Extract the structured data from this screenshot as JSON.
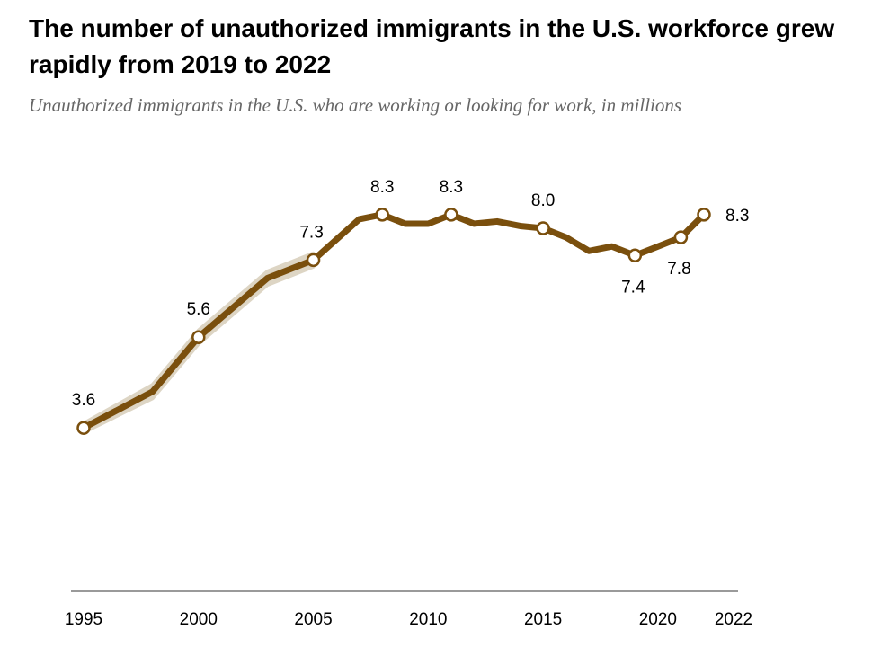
{
  "title": "The number of unauthorized immigrants in the U.S. workforce grew rapidly from 2019 to 2022",
  "subtitle": "Unauthorized immigrants in the U.S. who are working or looking for work, in millions",
  "colors": {
    "line": "#7a4f0d",
    "band": "#ddd5c4",
    "marker_fill": "#ffffff",
    "axis": "#9a9a9a"
  },
  "chart_data": {
    "type": "line",
    "title": "The number of unauthorized immigrants in the U.S. workforce grew rapidly from 2019 to 2022",
    "subtitle": "Unauthorized immigrants in the U.S. who are working or looking for work, in millions",
    "xlabel": "",
    "ylabel": "",
    "x_ticks": [
      1995,
      2000,
      2005,
      2010,
      2015,
      2020,
      2022
    ],
    "x_range": [
      1995,
      2022
    ],
    "ylim": [
      0,
      9
    ],
    "grid": false,
    "series": [
      {
        "x": [
          1995,
          1998,
          2000,
          2003,
          2005,
          2007,
          2008,
          2009,
          2010,
          2011,
          2012,
          2013,
          2014,
          2015,
          2016,
          2017,
          2018,
          2019,
          2020,
          2021,
          2022
        ],
        "values": [
          3.6,
          4.4,
          5.6,
          6.9,
          7.3,
          8.2,
          8.3,
          8.1,
          8.1,
          8.3,
          8.1,
          8.15,
          8.05,
          8.0,
          7.8,
          7.5,
          7.6,
          7.4,
          7.6,
          7.8,
          8.3
        ]
      }
    ],
    "labeled_points": [
      {
        "x": 1995,
        "y": 3.6,
        "label": "3.6",
        "position": "above"
      },
      {
        "x": 2000,
        "y": 5.6,
        "label": "5.6",
        "position": "above"
      },
      {
        "x": 2005,
        "y": 7.3,
        "label": "7.3",
        "position": "above-left"
      },
      {
        "x": 2008,
        "y": 8.3,
        "label": "8.3",
        "position": "above"
      },
      {
        "x": 2011,
        "y": 8.3,
        "label": "8.3",
        "position": "above"
      },
      {
        "x": 2015,
        "y": 8.0,
        "label": "8.0",
        "position": "above"
      },
      {
        "x": 2019,
        "y": 7.4,
        "label": "7.4",
        "position": "below"
      },
      {
        "x": 2021,
        "y": 7.8,
        "label": "7.8",
        "position": "below"
      },
      {
        "x": 2022,
        "y": 8.3,
        "label": "8.3",
        "position": "right"
      }
    ],
    "uncertainty_band": {
      "x": [
        1995,
        1998,
        2000,
        2003,
        2005
      ],
      "low": [
        3.5,
        4.25,
        5.45,
        6.75,
        7.15
      ],
      "high": [
        3.7,
        4.55,
        5.75,
        7.05,
        7.45
      ]
    }
  }
}
